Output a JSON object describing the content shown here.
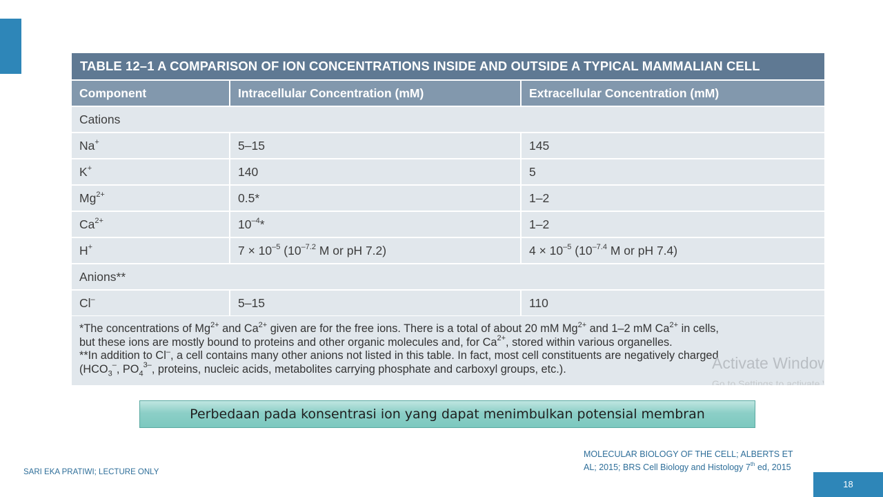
{
  "table": {
    "title": "TABLE 12–1 A COMPARISON OF ION CONCENTRATIONS INSIDE AND OUTSIDE A TYPICAL MAMMALIAN CELL",
    "columns": [
      "Component",
      "Intracellular Concentration (mM)",
      "Extracellular Concentration (mM)"
    ],
    "groups": {
      "cations": "Cations",
      "anions": "Anions**"
    },
    "rows": {
      "na": {
        "base": "Na",
        "sup": "+",
        "intra": "5–15",
        "extra": "145"
      },
      "k": {
        "base": "K",
        "sup": "+",
        "intra": "140",
        "extra": "5"
      },
      "mg": {
        "base": "Mg",
        "sup": "2+",
        "intra": "0.5*",
        "extra": "1–2"
      },
      "ca": {
        "base": "Ca",
        "sup": "2+",
        "intra_base": "10",
        "intra_sup": "–4",
        "intra_tail": "*",
        "extra": "1–2"
      },
      "h": {
        "base": "H",
        "sup": "+",
        "intra_a": "7 × 10",
        "intra_sup1": "–5",
        "intra_b": " (10",
        "intra_sup2": "–7.2",
        "intra_c": " M or pH 7.2)",
        "extra_a": "4 × 10",
        "extra_sup1": "–5",
        "extra_b": " (10",
        "extra_sup2": "–7.4",
        "extra_c": " M or pH 7.4)"
      },
      "cl": {
        "base": "Cl",
        "sup": "–",
        "intra": "5–15",
        "extra": "110"
      }
    },
    "notes": {
      "line1": {
        "a": "*The concentrations of Mg",
        "sup1": "2+",
        "b": " and Ca",
        "sup2": "2+",
        "c": " given are for the free ions. There is a total of about 20 mM Mg",
        "sup3": "2+",
        "d": " and 1–2 mM Ca",
        "sup4": "2+",
        "e": " in cells,"
      },
      "line2": {
        "a": "but these ions are mostly bound to proteins and other organic molecules and, for Ca",
        "sup": "2+",
        "b": ", stored within various organelles."
      },
      "line3": {
        "a": "**In addition to Cl",
        "sup": "–",
        "b": ", a cell contains many other anions not listed in this table. In fact, most cell constituents are negatively charged"
      },
      "line4": {
        "a": "(HCO",
        "sub1": "3",
        "sup1": "–",
        "b": ", PO",
        "sub2": "4",
        "sup2": "3–",
        "c": ", proteins, nucleic acids, metabolites carrying phosphate and carboxyl groups, etc.)."
      }
    }
  },
  "watermark": {
    "line1": "Activate Windows",
    "line2": "Go to Settings to activate Windows."
  },
  "caption": "Perbedaan pada konsentrasi ion yang dapat menimbulkan potensial membran",
  "footer": {
    "author": "SARI EKA PRATIWI; LECTURE ONLY",
    "reference_a": "MOLECULAR BIOLOGY OF THE CELL; ALBERTS ET AL; 2015;  BRS Cell Biology and Histology 7",
    "reference_sup": "th",
    "reference_b": " ed, 2015",
    "page_number": "18"
  },
  "colors": {
    "accent": "#2e86b8",
    "table_title_bg": "#5f7993",
    "table_header_bg": "#8298ad",
    "table_cell_bg": "#e1e7ec",
    "caption_bg": "#8ccfc7"
  }
}
